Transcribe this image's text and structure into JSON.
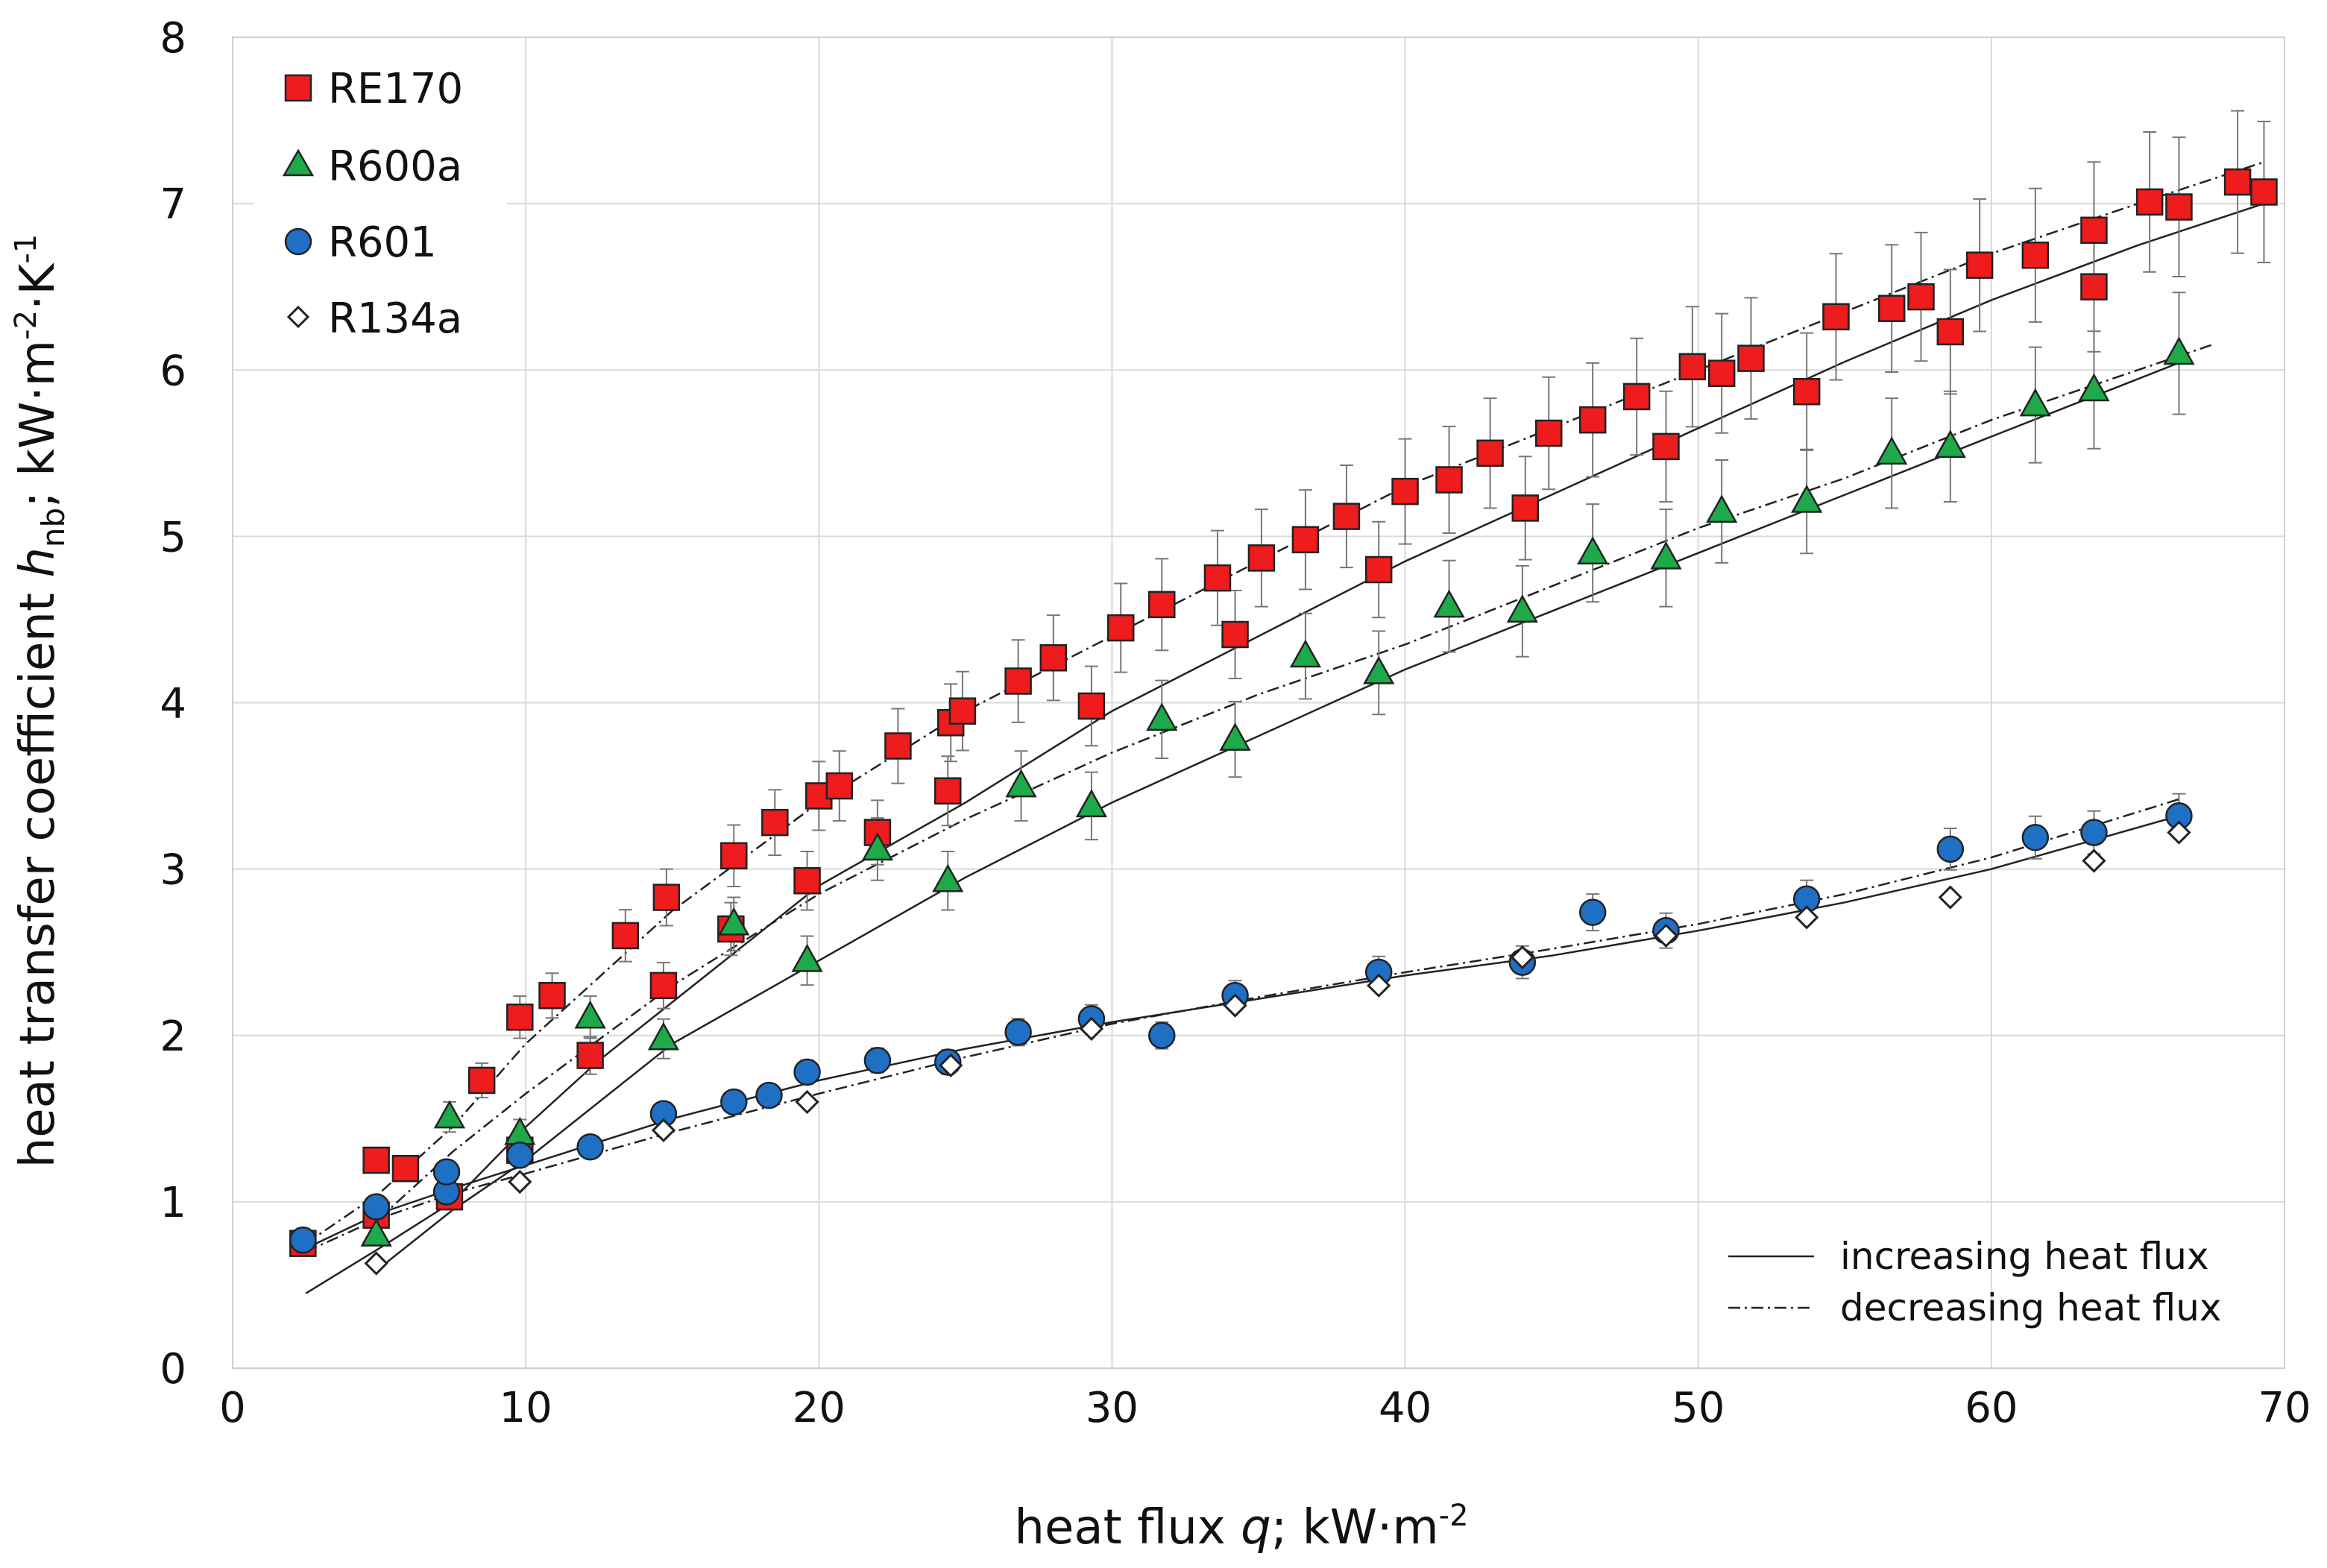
{
  "chart_data": {
    "type": "scatter",
    "title": "",
    "xlabel": {
      "main": "heat flux ",
      "var": "q",
      "unit": "; kW·m",
      "exp": "-2"
    },
    "ylabel": {
      "main": "heat transfer coefficient ",
      "var": "h",
      "sub": "nb",
      "unit": "; kW·m",
      "exp1": "-2",
      "mid": "·K",
      "exp2": "-1"
    },
    "xlim": [
      0,
      70
    ],
    "ylim": [
      0,
      8
    ],
    "xticks": [
      "0",
      "10",
      "20",
      "30",
      "40",
      "50",
      "60",
      "70"
    ],
    "yticks": [
      "0",
      "1",
      "2",
      "3",
      "4",
      "5",
      "6",
      "7",
      "8"
    ],
    "grid": true,
    "legend": [
      {
        "name": "RE170",
        "marker": "square",
        "color": "#ee1c1c"
      },
      {
        "name": "R600a",
        "marker": "triangle",
        "color": "#1faa4a"
      },
      {
        "name": "R601",
        "marker": "circle",
        "color": "#1f6fc5"
      },
      {
        "name": "R134a",
        "marker": "diamond",
        "color": "#ffffff"
      }
    ],
    "line_legend": [
      {
        "name": "increasing heat flux",
        "style": "solid"
      },
      {
        "name": "decreasing heat flux",
        "style": "dashdot"
      }
    ],
    "series": [
      {
        "name": "RE170",
        "marker": "square",
        "color": "#ee1c1c",
        "error_frac": 0.06,
        "x": [
          2.4,
          4.9,
          4.9,
          5.9,
          7.4,
          8.5,
          9.8,
          9.8,
          10.9,
          12.2,
          13.4,
          14.7,
          14.8,
          17.0,
          17.1,
          18.5,
          19.6,
          20.0,
          20.7,
          22.0,
          22.7,
          24.4,
          24.5,
          24.9,
          26.8,
          28.0,
          29.3,
          30.3,
          31.7,
          33.6,
          34.2,
          35.1,
          36.6,
          38.0,
          39.1,
          40.0,
          41.5,
          42.9,
          44.1,
          44.9,
          46.4,
          47.9,
          48.9,
          49.8,
          50.8,
          51.8,
          53.7,
          54.7,
          56.6,
          57.6,
          58.6,
          59.6,
          61.5,
          63.5,
          63.5,
          65.4,
          66.4,
          68.4,
          69.3
        ],
        "y": [
          0.75,
          0.92,
          1.25,
          1.2,
          1.03,
          1.73,
          1.31,
          2.11,
          2.24,
          1.88,
          2.6,
          2.3,
          2.83,
          2.64,
          3.08,
          3.28,
          2.93,
          3.44,
          3.5,
          3.22,
          3.74,
          3.47,
          3.88,
          3.95,
          4.13,
          4.27,
          3.98,
          4.45,
          4.59,
          4.75,
          4.41,
          4.87,
          4.98,
          5.12,
          4.8,
          5.27,
          5.34,
          5.5,
          5.17,
          5.62,
          5.7,
          5.84,
          5.54,
          6.02,
          5.98,
          6.07,
          5.87,
          6.32,
          6.37,
          6.44,
          6.23,
          6.63,
          6.69,
          6.5,
          6.84,
          7.01,
          6.98,
          7.13,
          7.07
        ]
      },
      {
        "name": "R600a",
        "marker": "triangle",
        "color": "#1faa4a",
        "error_frac": 0.06,
        "x": [
          4.9,
          7.4,
          9.8,
          12.2,
          14.7,
          17.1,
          19.6,
          22.0,
          24.4,
          26.9,
          29.3,
          31.7,
          34.2,
          36.6,
          39.1,
          41.5,
          44.0,
          46.4,
          48.9,
          50.8,
          53.7,
          56.6,
          58.6,
          61.5,
          63.5,
          66.4
        ],
        "y": [
          0.8,
          1.51,
          1.41,
          2.11,
          1.98,
          2.67,
          2.45,
          3.12,
          2.93,
          3.5,
          3.38,
          3.9,
          3.78,
          4.28,
          4.18,
          4.58,
          4.55,
          4.9,
          4.87,
          5.15,
          5.21,
          5.5,
          5.54,
          5.79,
          5.88,
          6.1
        ]
      },
      {
        "name": "R601",
        "marker": "circle",
        "color": "#1f6fc5",
        "error_frac": 0.04,
        "x": [
          2.4,
          4.9,
          7.3,
          7.3,
          9.8,
          12.2,
          14.7,
          17.1,
          18.3,
          19.6,
          22.0,
          24.4,
          26.8,
          29.3,
          31.7,
          34.2,
          39.1,
          44.0,
          46.4,
          48.9,
          53.7,
          58.6,
          61.5,
          63.5,
          66.4
        ],
        "y": [
          0.77,
          0.97,
          1.06,
          1.18,
          1.28,
          1.33,
          1.53,
          1.6,
          1.64,
          1.78,
          1.85,
          1.84,
          2.02,
          2.1,
          2.0,
          2.24,
          2.38,
          2.44,
          2.74,
          2.63,
          2.82,
          3.12,
          3.19,
          3.22,
          3.32
        ]
      },
      {
        "name": "R134a",
        "marker": "diamond",
        "color": "#ffffff",
        "error_frac": 0,
        "x": [
          4.9,
          9.8,
          14.7,
          19.6,
          24.5,
          29.3,
          34.2,
          39.1,
          44.0,
          48.9,
          53.7,
          58.6,
          63.5,
          66.4
        ],
        "y": [
          0.63,
          1.12,
          1.43,
          1.6,
          1.82,
          2.04,
          2.18,
          2.3,
          2.47,
          2.6,
          2.71,
          2.83,
          3.05,
          3.22
        ]
      }
    ],
    "fit_lines": [
      {
        "name": "RE170 increasing",
        "style": "solid",
        "x": [
          2.5,
          5,
          7.5,
          10,
          12.5,
          15,
          20,
          25,
          30,
          35,
          40,
          45,
          50,
          55,
          60,
          65,
          69.3
        ],
        "y": [
          0.45,
          0.72,
          1.0,
          1.45,
          1.85,
          2.2,
          2.9,
          3.4,
          3.95,
          4.4,
          4.85,
          5.25,
          5.65,
          6.05,
          6.42,
          6.75,
          7.0
        ]
      },
      {
        "name": "RE170 decreasing",
        "style": "dashdot",
        "x": [
          2.5,
          5,
          7.5,
          10,
          12.5,
          15,
          20,
          25,
          30,
          35,
          40,
          45,
          50,
          55,
          60,
          65,
          69.3
        ],
        "y": [
          0.75,
          1.05,
          1.45,
          1.95,
          2.35,
          2.75,
          3.4,
          3.95,
          4.4,
          4.85,
          5.3,
          5.65,
          6.0,
          6.35,
          6.7,
          7.0,
          7.25
        ]
      },
      {
        "name": "R600a increasing",
        "style": "solid",
        "x": [
          5,
          7.5,
          10,
          15,
          20,
          25,
          30,
          35,
          40,
          45,
          50,
          55,
          60,
          66.5
        ],
        "y": [
          0.6,
          0.95,
          1.25,
          1.95,
          2.45,
          2.95,
          3.4,
          3.8,
          4.2,
          4.55,
          4.9,
          5.25,
          5.6,
          6.05
        ]
      },
      {
        "name": "R600a decreasing",
        "style": "dashdot",
        "x": [
          5,
          7.5,
          10,
          15,
          20,
          25,
          30,
          35,
          40,
          45,
          50,
          55,
          60,
          67.5
        ],
        "y": [
          0.9,
          1.3,
          1.65,
          2.3,
          2.85,
          3.3,
          3.7,
          4.05,
          4.35,
          4.7,
          5.05,
          5.35,
          5.7,
          6.15
        ]
      },
      {
        "name": "R601 increasing",
        "style": "solid",
        "x": [
          2.5,
          5,
          7.5,
          10,
          15,
          20,
          25,
          30,
          35,
          40,
          45,
          50,
          55,
          60,
          66.4
        ],
        "y": [
          0.72,
          0.93,
          1.08,
          1.22,
          1.5,
          1.73,
          1.92,
          2.08,
          2.22,
          2.36,
          2.48,
          2.63,
          2.8,
          3.0,
          3.32
        ]
      },
      {
        "name": "R601 decreasing",
        "style": "dashdot",
        "x": [
          2.5,
          5,
          7.5,
          10,
          15,
          20,
          25,
          30,
          35,
          40,
          45,
          50,
          55,
          60,
          66.4
        ],
        "y": [
          0.7,
          0.9,
          1.05,
          1.17,
          1.42,
          1.65,
          1.87,
          2.07,
          2.23,
          2.38,
          2.52,
          2.67,
          2.85,
          3.07,
          3.42
        ]
      }
    ]
  }
}
